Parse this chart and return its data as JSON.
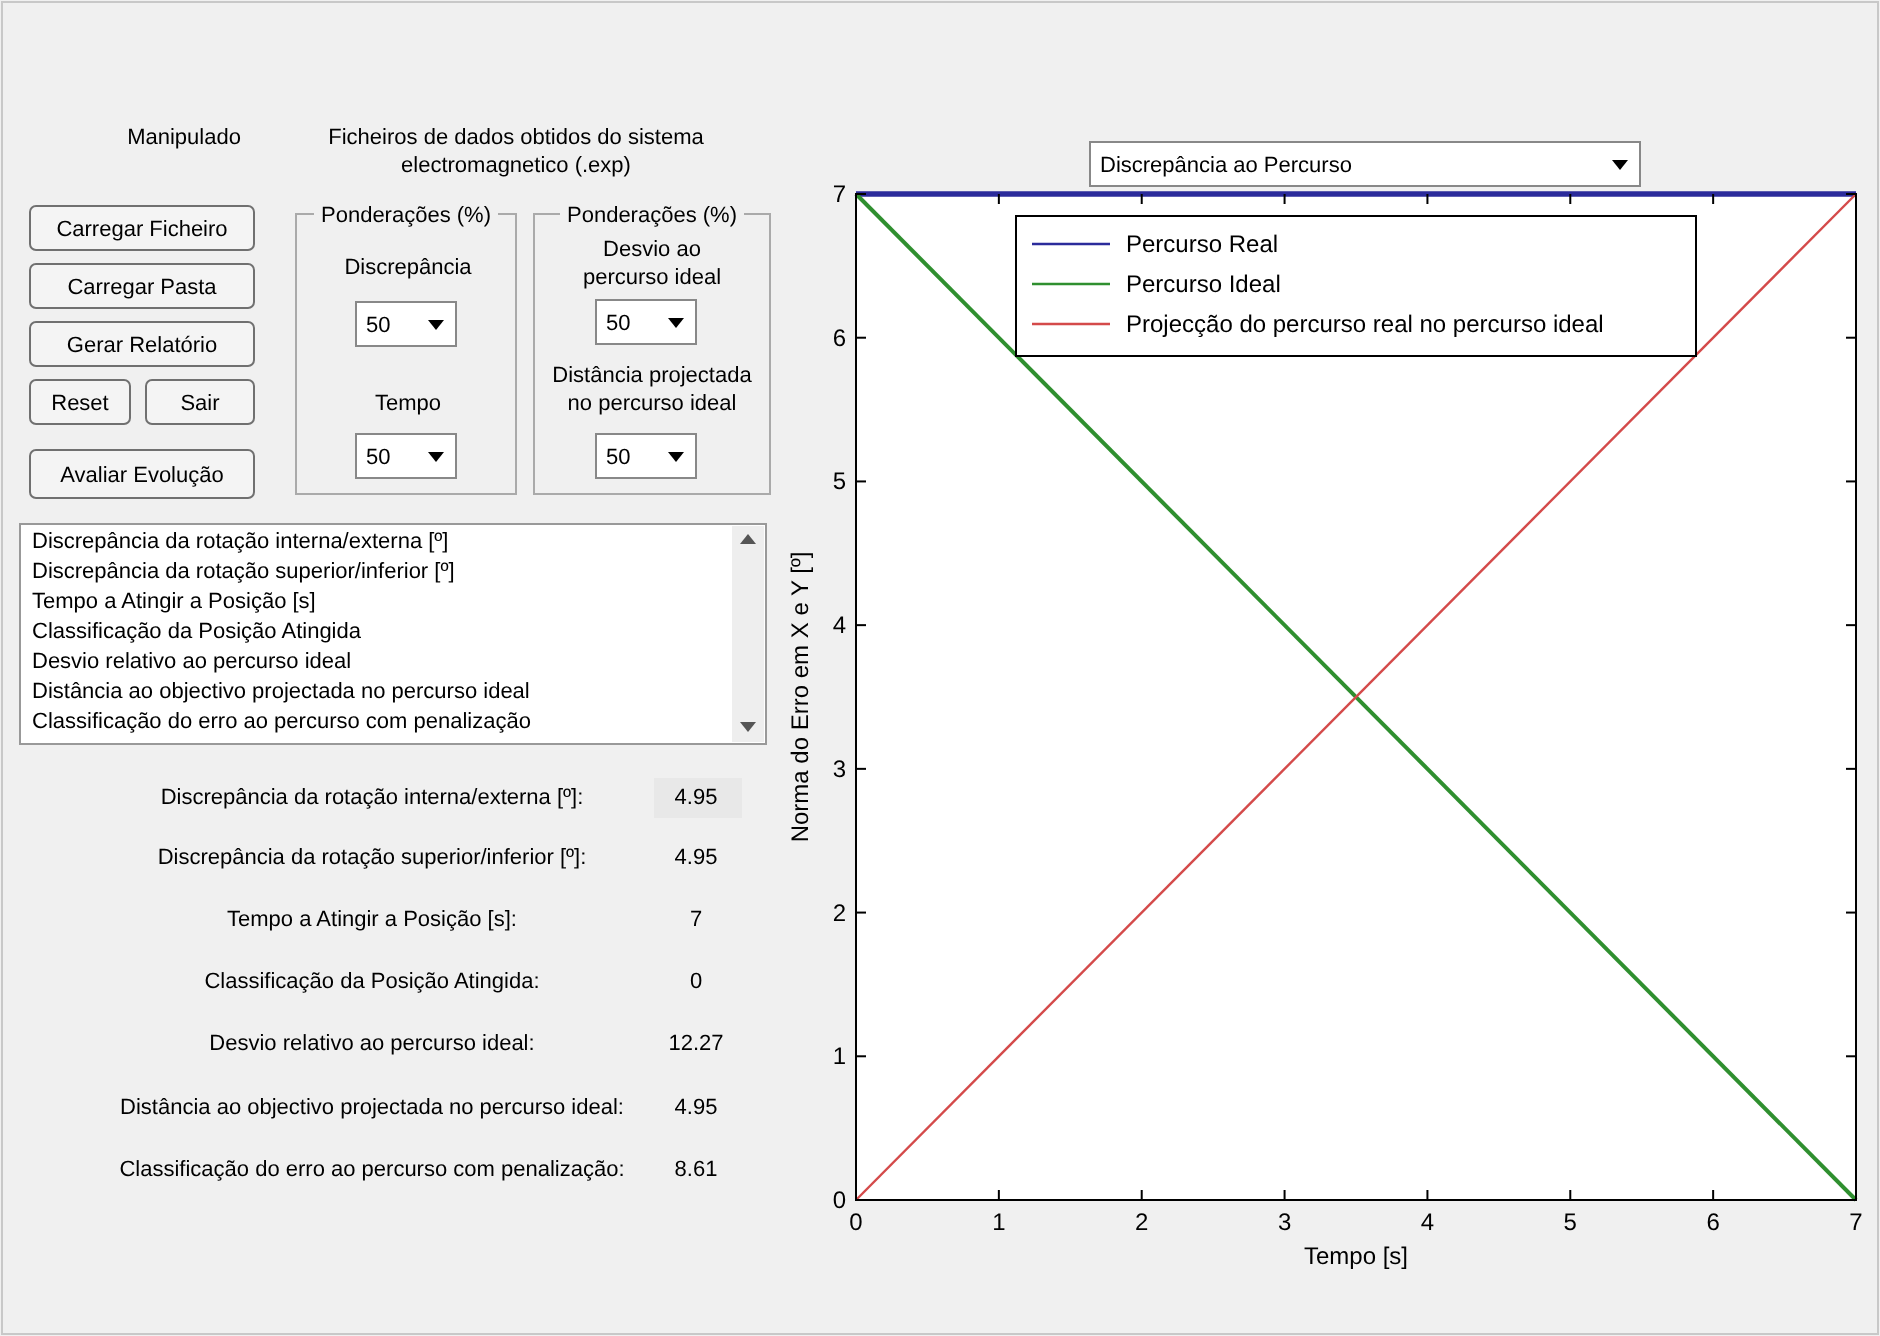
{
  "chart_data": [
    {
      "type": "other",
      "annotations": [
        "Manipulado",
        "Ficheiros de dados obtidos do sistema electromagnetico (.exp)",
        "Carregar Ficheiro",
        "Carregar Pasta",
        "Gerar Relatório",
        "Reset",
        "Sair",
        "Avaliar Evolução",
        "Ponderações (%)",
        "Discrepância",
        "50",
        "Tempo",
        "50",
        "Ponderações (%)",
        "Desvio ao percurso ideal",
        "50",
        "Distância projectada no percurso ideal",
        "50",
        "Discrepância da rotação interna/externa [º]",
        "Discrepância da rotação superior/inferior [º]",
        "Tempo a Atingir a Posição [s]",
        "Classificação da Posição Atingida",
        "Desvio relativo ao percurso ideal",
        "Distância ao objectivo projectada no percurso ideal",
        "Classificação do erro ao percurso com penalização",
        "Discrepância da rotação interna/externa [º]:",
        "4.95",
        "Discrepância da rotação superior/inferior [º]:",
        "4.95",
        "Tempo a Atingir a Posição [s]:",
        "7",
        "Classificação da Posição Atingida:",
        "0",
        "Desvio relativo ao percurso ideal:",
        "12.27",
        "Distância ao objectivo projectada no percurso ideal:",
        "4.95",
        "Classificação do erro ao percurso com penalização:",
        "8.61",
        "Discrepância ao Percurso"
      ]
    },
    {
      "type": "line",
      "xlabel": "Tempo [s]",
      "ylabel": "Norma do Erro em X e Y [º]",
      "xlim": [
        0,
        7
      ],
      "ylim": [
        0,
        7
      ],
      "xticks": [
        0,
        1,
        2,
        3,
        4,
        5,
        6,
        7
      ],
      "yticks": [
        0,
        1,
        2,
        3,
        4,
        5,
        6,
        7
      ],
      "grid": false,
      "legend": "top",
      "x": [
        0,
        7
      ],
      "marker": "none",
      "line_style": "solid",
      "series": [
        {
          "name": "Percurso Real",
          "color": "#2b2b9b",
          "values": [
            7,
            7
          ]
        },
        {
          "name": "Percurso Ideal",
          "color": "#2f8f2f",
          "values": [
            7,
            0
          ]
        },
        {
          "name": "Projecção do percurso real no percurso ideal",
          "color": "#d44a4a",
          "values": [
            0,
            7
          ]
        }
      ]
    }
  ]
}
